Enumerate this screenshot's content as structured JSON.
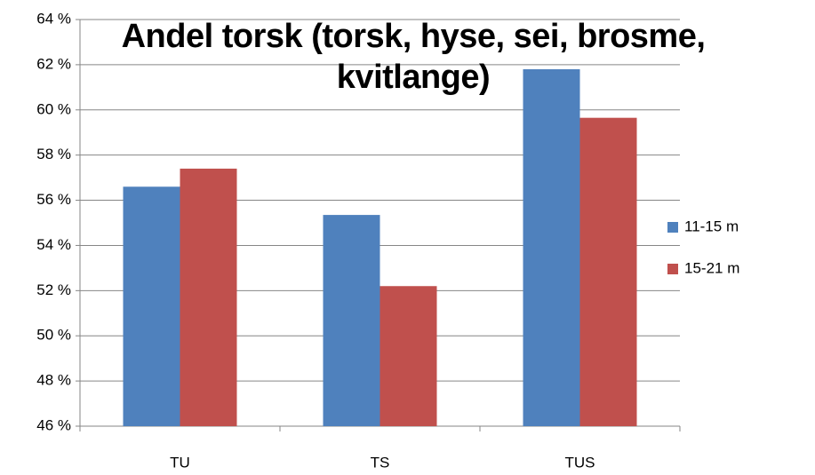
{
  "chart_data": {
    "type": "bar",
    "title": "Andel torsk (torsk, hyse, sei, brosme, kvitlange)",
    "categories": [
      "TU",
      "TS",
      "TUS"
    ],
    "series": [
      {
        "name": "11-15 m",
        "color": "#4f81bd",
        "values": [
          56.6,
          55.35,
          61.8
        ]
      },
      {
        "name": "15-21 m",
        "color": "#c0504d",
        "values": [
          57.4,
          52.2,
          59.65
        ]
      }
    ],
    "ylim": [
      46,
      64
    ],
    "yticks": [
      {
        "value": 46,
        "label": "46 %"
      },
      {
        "value": 48,
        "label": "48 %"
      },
      {
        "value": 50,
        "label": "50 %"
      },
      {
        "value": 52,
        "label": "52 %"
      },
      {
        "value": 54,
        "label": "54 %"
      },
      {
        "value": 56,
        "label": "56 %"
      },
      {
        "value": 58,
        "label": "58 %"
      },
      {
        "value": 60,
        "label": "60 %"
      },
      {
        "value": 62,
        "label": "62 %"
      },
      {
        "value": 64,
        "label": "64 %"
      }
    ],
    "grid": true,
    "legend": "right"
  }
}
